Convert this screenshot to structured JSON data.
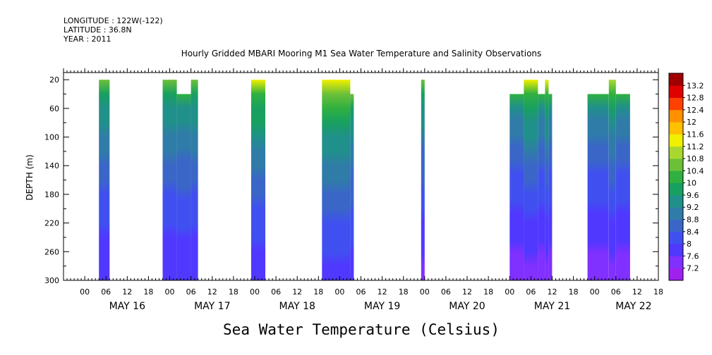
{
  "header": {
    "longitude": "LONGITUDE : 122W(-122)",
    "latitude": "LATITUDE : 36.8N",
    "year": "YEAR : 2011"
  },
  "chart_data": {
    "type": "heatmap",
    "title": "Hourly Gridded MBARI Mooring M1 Sea Water Temperature and Salinity Observations",
    "xlabel": "",
    "ylabel": "DEPTH (m)",
    "caption": "Sea Water Temperature (Celsius)",
    "x_hours_range": [
      -6,
      162
    ],
    "ylim": [
      300,
      10
    ],
    "y_ticks": [
      20,
      60,
      100,
      140,
      180,
      220,
      260,
      300
    ],
    "x_tick_labels": [
      "00",
      "06",
      "12",
      "18",
      "00",
      "06",
      "12",
      "18",
      "00",
      "06",
      "12",
      "18",
      "00",
      "06",
      "12",
      "18",
      "00",
      "06",
      "12",
      "18",
      "00",
      "06",
      "12",
      "18",
      "00",
      "06",
      "12",
      "18"
    ],
    "x_tick_hours": [
      0,
      6,
      12,
      18,
      24,
      30,
      36,
      42,
      48,
      54,
      60,
      66,
      72,
      78,
      84,
      90,
      96,
      102,
      108,
      114,
      120,
      126,
      132,
      138,
      144,
      150,
      156,
      162
    ],
    "day_labels": [
      {
        "label": "MAY 16",
        "hour": 12
      },
      {
        "label": "MAY 17",
        "hour": 36
      },
      {
        "label": "MAY 18",
        "hour": 60
      },
      {
        "label": "MAY 19",
        "hour": 84
      },
      {
        "label": "MAY 20",
        "hour": 108
      },
      {
        "label": "MAY 21",
        "hour": 132
      },
      {
        "label": "MAY 22",
        "hour": 155
      }
    ],
    "colorbar": {
      "levels": [
        7.2,
        7.6,
        8,
        8.4,
        8.8,
        9.2,
        9.6,
        10,
        10.4,
        10.8,
        11.2,
        11.6,
        12,
        12.4,
        12.8,
        13.2
      ],
      "tick_labels": [
        "7.2",
        "7.6",
        "8",
        "8.4",
        "8.8",
        "9.2",
        "9.6",
        "10",
        "10.4",
        "10.8",
        "11.2",
        "11.6",
        "12",
        "12.4",
        "12.8",
        "13.2"
      ],
      "colors": [
        "#a020f0",
        "#8030ff",
        "#5038ff",
        "#4050f0",
        "#3a66c8",
        "#2f7ca8",
        "#20908a",
        "#18a060",
        "#30b040",
        "#6cc038",
        "#a8d830",
        "#f0f000",
        "#ffc000",
        "#ff9000",
        "#ff4000",
        "#e00000",
        "#a00000"
      ]
    },
    "observation_blocks": [
      {
        "start_hour": 4,
        "end_hour": 7,
        "top_depth": 20,
        "bottom_depth": 300,
        "surface_temp_c": 10.6,
        "bottom_temp_c": 7.6
      },
      {
        "start_hour": 22,
        "end_hour": 26,
        "top_depth": 20,
        "bottom_depth": 300,
        "surface_temp_c": 10.6,
        "bottom_temp_c": 7.6
      },
      {
        "start_hour": 26,
        "end_hour": 30,
        "top_depth": 40,
        "bottom_depth": 300,
        "surface_temp_c": 10.2,
        "bottom_temp_c": 7.6
      },
      {
        "start_hour": 30,
        "end_hour": 32,
        "top_depth": 20,
        "bottom_depth": 300,
        "surface_temp_c": 10.6,
        "bottom_temp_c": 7.6
      },
      {
        "start_hour": 47,
        "end_hour": 51,
        "top_depth": 20,
        "bottom_depth": 300,
        "surface_temp_c": 11.2,
        "bottom_temp_c": 7.6
      },
      {
        "start_hour": 67,
        "end_hour": 75,
        "top_depth": 20,
        "bottom_depth": 300,
        "surface_temp_c": 11.4,
        "bottom_temp_c": 7.7
      },
      {
        "start_hour": 75,
        "end_hour": 76,
        "top_depth": 40,
        "bottom_depth": 300,
        "surface_temp_c": 10.4,
        "bottom_temp_c": 7.7
      },
      {
        "start_hour": 95,
        "end_hour": 96,
        "top_depth": 20,
        "bottom_depth": 300,
        "surface_temp_c": 10.6,
        "bottom_temp_c": 7.4
      },
      {
        "start_hour": 120,
        "end_hour": 124,
        "top_depth": 40,
        "bottom_depth": 300,
        "surface_temp_c": 10.0,
        "bottom_temp_c": 7.3
      },
      {
        "start_hour": 124,
        "end_hour": 128,
        "top_depth": 20,
        "bottom_depth": 300,
        "surface_temp_c": 11.2,
        "bottom_temp_c": 7.3
      },
      {
        "start_hour": 128,
        "end_hour": 130,
        "top_depth": 40,
        "bottom_depth": 300,
        "surface_temp_c": 10.0,
        "bottom_temp_c": 7.3
      },
      {
        "start_hour": 130,
        "end_hour": 131,
        "top_depth": 20,
        "bottom_depth": 300,
        "surface_temp_c": 11.2,
        "bottom_temp_c": 7.3
      },
      {
        "start_hour": 131,
        "end_hour": 132,
        "top_depth": 40,
        "bottom_depth": 300,
        "surface_temp_c": 10.0,
        "bottom_temp_c": 7.3
      },
      {
        "start_hour": 142,
        "end_hour": 148,
        "top_depth": 40,
        "bottom_depth": 300,
        "surface_temp_c": 10.0,
        "bottom_temp_c": 7.3
      },
      {
        "start_hour": 148,
        "end_hour": 150,
        "top_depth": 20,
        "bottom_depth": 300,
        "surface_temp_c": 11.0,
        "bottom_temp_c": 7.3
      },
      {
        "start_hour": 150,
        "end_hour": 154,
        "top_depth": 40,
        "bottom_depth": 300,
        "surface_temp_c": 10.0,
        "bottom_temp_c": 7.3
      }
    ],
    "grid": false,
    "legend": "right"
  }
}
